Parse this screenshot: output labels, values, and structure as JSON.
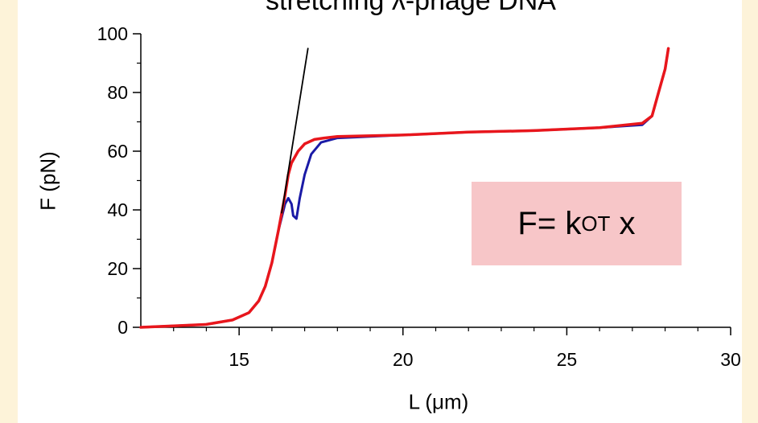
{
  "chart_data": {
    "type": "line",
    "title": "stretching λ-phage DNA",
    "xlabel": "L (μm)",
    "ylabel": "F (pN)",
    "xlim": [
      12,
      30
    ],
    "ylim": [
      0,
      100
    ],
    "x_ticks": [
      "15",
      "20",
      "25",
      "30"
    ],
    "y_ticks": [
      "0",
      "20",
      "40",
      "60",
      "80",
      "100"
    ],
    "annotation": {
      "text": "F= k",
      "subscript": "OT",
      "suffix": " x",
      "background": "#f7c6c8"
    },
    "series": [
      {
        "color": "#1a1aa6",
        "x": [
          12.0,
          13.0,
          14.0,
          14.8,
          15.3,
          15.6,
          15.8,
          16.0,
          16.2,
          16.4,
          16.5,
          16.6,
          16.65,
          16.75,
          16.85,
          17.0,
          17.2,
          17.5,
          18.0,
          20.0,
          22.0,
          24.0,
          26.0,
          27.3,
          27.6,
          27.8,
          28.0,
          28.1
        ],
        "y": [
          0,
          0.5,
          1,
          2.5,
          5,
          9,
          14,
          22,
          33,
          42,
          44,
          42,
          38,
          37,
          44,
          52,
          59,
          63,
          64.5,
          65.5,
          66.5,
          67,
          68,
          69,
          72,
          80,
          88,
          95
        ]
      },
      {
        "color": "#e8161c",
        "x": [
          12.0,
          13.0,
          14.0,
          14.8,
          15.3,
          15.6,
          15.8,
          16.0,
          16.2,
          16.4,
          16.5,
          16.6,
          16.8,
          17.0,
          17.3,
          17.6,
          18.0,
          20.0,
          22.0,
          24.0,
          26.0,
          27.3,
          27.6,
          27.8,
          28.0,
          28.1
        ],
        "y": [
          0,
          0.5,
          1,
          2.5,
          5,
          9,
          14,
          22,
          33,
          45,
          52,
          56,
          60,
          62.5,
          64,
          64.5,
          65,
          65.5,
          66.5,
          67,
          68,
          69.5,
          72,
          80,
          88,
          95
        ]
      },
      {
        "color": "#000000",
        "x": [
          16.3,
          17.1
        ],
        "y": [
          39,
          95
        ]
      }
    ]
  }
}
